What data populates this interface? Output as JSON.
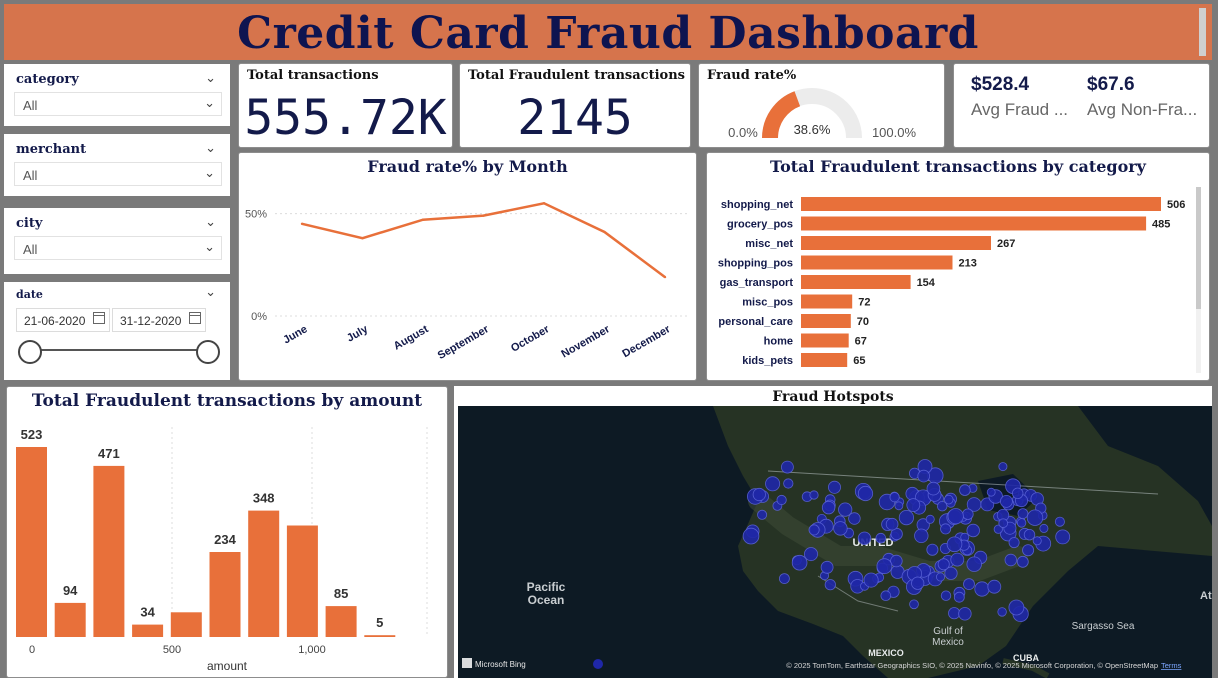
{
  "header": {
    "title": "Credit Card Fraud Dashboard"
  },
  "filters": {
    "category": {
      "label": "category",
      "value": "All"
    },
    "merchant": {
      "label": "merchant",
      "value": "All"
    },
    "city": {
      "label": "city",
      "value": "All"
    },
    "date": {
      "label": "date",
      "start": "21-06-2020",
      "end": "31-12-2020"
    }
  },
  "kpis": {
    "total_transactions": {
      "label": "Total transactions",
      "value": "555.72K"
    },
    "total_fraud": {
      "label": "Total Fraudulent transactions",
      "value": "2145"
    },
    "fraud_rate": {
      "label": "Fraud rate%",
      "value": "38.6%",
      "min": "0.0%",
      "max": "100.0%",
      "fraction": 0.386
    },
    "avg_fraud": {
      "value": "$528.4",
      "label": "Avg Fraud ..."
    },
    "avg_nonfraud": {
      "value": "$67.6",
      "label": "Avg Non-Fra..."
    }
  },
  "colors": {
    "accent": "#e8703a",
    "navy": "#131a4a",
    "header": "#d6744c",
    "map_point": "#1f27a8"
  },
  "chart_data": [
    {
      "id": "fraud_rate_by_month",
      "type": "line",
      "title": "Fraud rate% by Month",
      "categories": [
        "June",
        "July",
        "August",
        "September",
        "October",
        "November",
        "December"
      ],
      "values": [
        45,
        38,
        47,
        49,
        55,
        41,
        19
      ],
      "ytick_labels": [
        "0%",
        "50%"
      ],
      "ylim": [
        0,
        62
      ],
      "grid": true
    },
    {
      "id": "fraud_by_category",
      "type": "bar",
      "orientation": "horizontal",
      "title": "Total Fraudulent transactions by category",
      "categories": [
        "shopping_net",
        "grocery_pos",
        "misc_net",
        "shopping_pos",
        "gas_transport",
        "misc_pos",
        "personal_care",
        "home",
        "kids_pets"
      ],
      "values": [
        506,
        485,
        267,
        213,
        154,
        72,
        70,
        67,
        65
      ]
    },
    {
      "id": "fraud_by_amount",
      "type": "bar",
      "title": "Total Fraudulent transactions by amount",
      "values": [
        523,
        94,
        471,
        34,
        68,
        234,
        348,
        307,
        85,
        5
      ],
      "labels": [
        "523",
        "94",
        "471",
        "34",
        "",
        "234",
        "348",
        "",
        "85",
        "5"
      ],
      "xtick_labels": [
        "0",
        "500",
        "1,000"
      ],
      "xlabel": "amount"
    }
  ],
  "map": {
    "title": "Fraud Hotspots",
    "labels": {
      "pacific": "Pacific",
      "ocean": "Ocean",
      "us": "UNITED",
      "mexico": "MEXICO",
      "gulf": "Gulf of",
      "gulf2": "Mexico",
      "cuba": "CUBA",
      "sargasso": "Sargasso Sea",
      "atl": "Atl"
    },
    "brand": "Microsoft Bing",
    "attribution": "© 2025 TomTom, Earthstar Geographics SIO, © 2025 Navinfo, © 2025 Microsoft Corporation, © OpenStreetMap",
    "terms": "Terms"
  }
}
